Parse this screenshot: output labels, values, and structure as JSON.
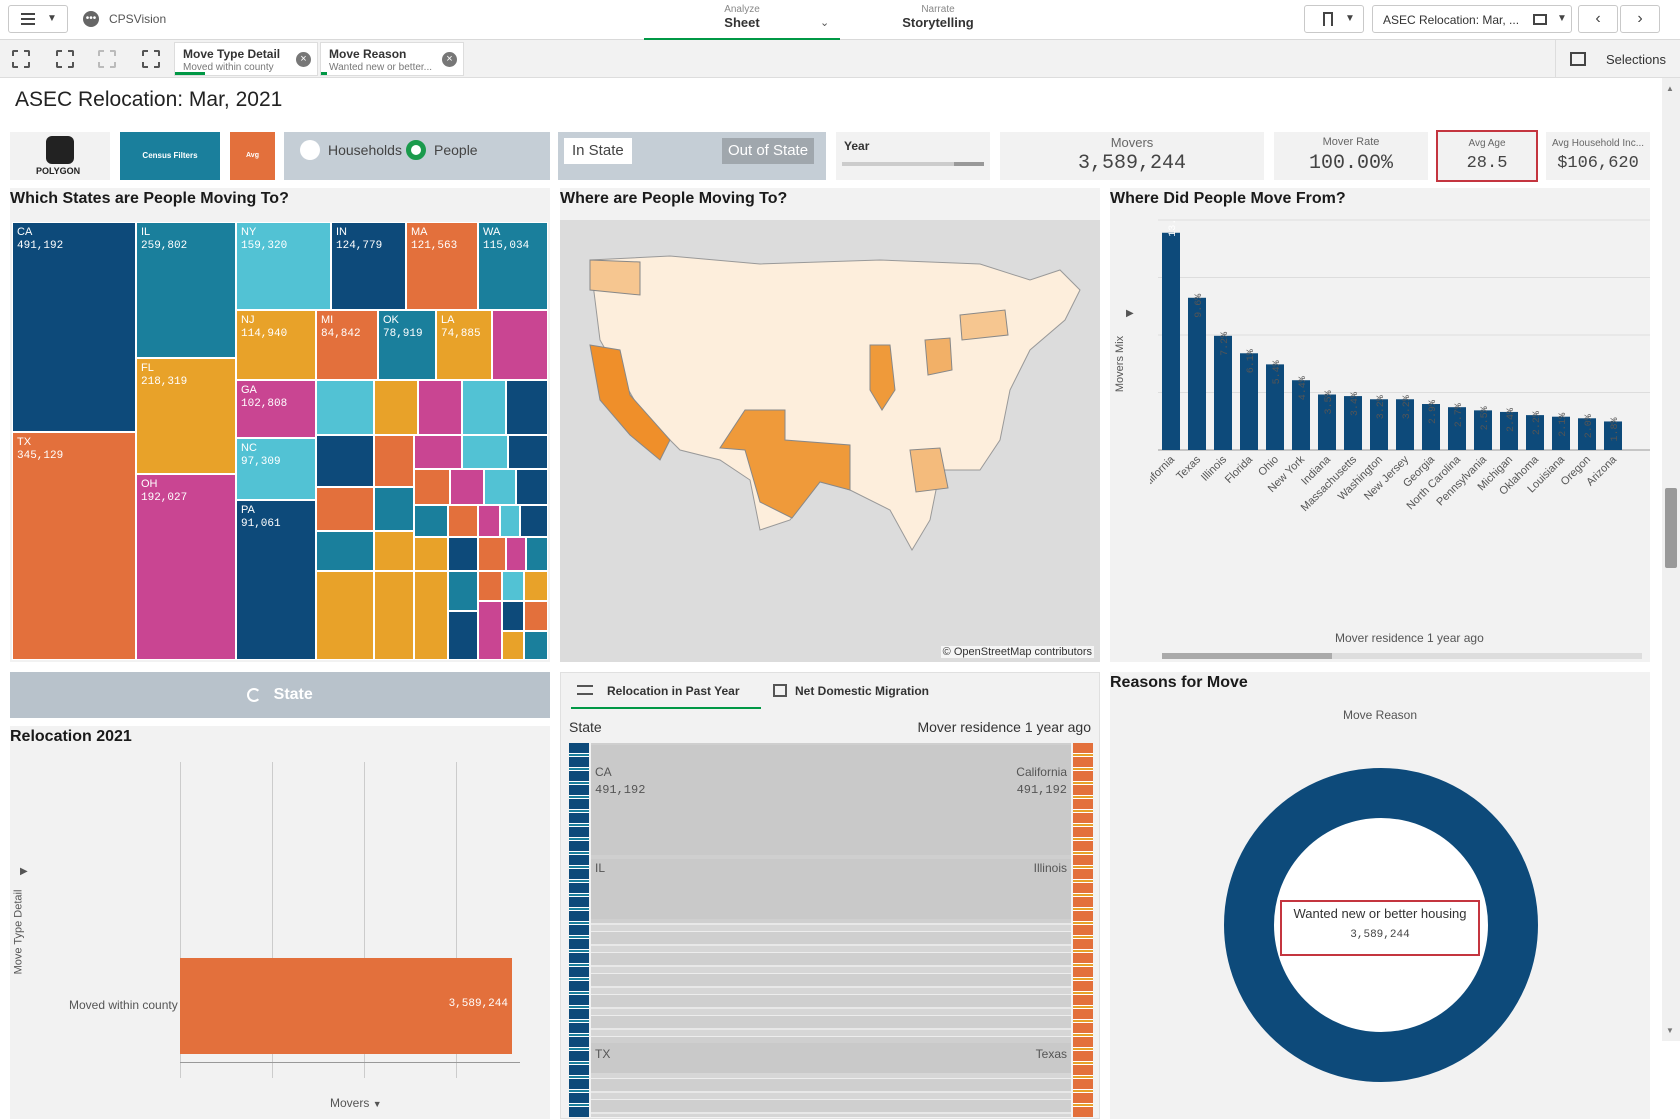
{
  "app": {
    "name": "CPSVision"
  },
  "nav": {
    "analyze_label": "Analyze",
    "analyze_value": "Sheet",
    "narrate_label": "Narrate",
    "narrate_value": "Storytelling",
    "sheet_selector": "ASEC Relocation: Mar, ..."
  },
  "selections": {
    "label": "Selections",
    "chips": [
      {
        "title": "Move Type Detail",
        "value": "Moved within county"
      },
      {
        "title": "Move Reason",
        "value": "Wanted new or better..."
      }
    ]
  },
  "sheet": {
    "title": "ASEC Relocation: Mar, 2021"
  },
  "filters": {
    "logo_text": "POLYGON",
    "census_filters": "Census Filters",
    "avg": "Avg",
    "households": "Households",
    "people": "People",
    "in_state": "In State",
    "out_of_state": "Out of State",
    "year": "Year"
  },
  "kpis": {
    "movers": {
      "label": "Movers",
      "value": "3,589,244"
    },
    "mover_rate": {
      "label": "Mover Rate",
      "value": "100.00%"
    },
    "avg_age": {
      "label": "Avg Age",
      "value": "28.5"
    },
    "avg_income": {
      "label": "Avg Household Inc...",
      "value": "$106,620"
    }
  },
  "treemap": {
    "title": "Which States are People Moving To?",
    "tiles": [
      {
        "code": "CA",
        "value": "491,192"
      },
      {
        "code": "TX",
        "value": "345,129"
      },
      {
        "code": "IL",
        "value": "259,802"
      },
      {
        "code": "FL",
        "value": "218,319"
      },
      {
        "code": "OH",
        "value": "192,027"
      },
      {
        "code": "NY",
        "value": "159,320"
      },
      {
        "code": "IN",
        "value": "124,779"
      },
      {
        "code": "MA",
        "value": "121,563"
      },
      {
        "code": "WA",
        "value": "115,034"
      },
      {
        "code": "NJ",
        "value": "114,940"
      },
      {
        "code": "MI",
        "value": "84,842"
      },
      {
        "code": "OK",
        "value": "78,919"
      },
      {
        "code": "LA",
        "value": "74,885"
      },
      {
        "code": "GA",
        "value": "102,808"
      },
      {
        "code": "NC",
        "value": "97,309"
      },
      {
        "code": "PA",
        "value": "91,061"
      }
    ]
  },
  "map": {
    "title": "Where are People Moving To?",
    "attribution": "© OpenStreetMap contributors"
  },
  "bar_chart": {
    "title": "Where Did People Move From?",
    "ylabel": "Movers Mix",
    "xlabel": "Mover residence 1 year ago"
  },
  "chart_data": {
    "type": "bar",
    "categories": [
      "California",
      "Texas",
      "Illinois",
      "Florida",
      "Ohio",
      "New York",
      "Indiana",
      "Massachusetts",
      "Washington",
      "New Jersey",
      "Georgia",
      "North Carolina",
      "Pennsylvania",
      "Michigan",
      "Oklahoma",
      "Louisiana",
      "Oregon",
      "Arizona"
    ],
    "values": [
      13.7,
      9.6,
      7.2,
      6.1,
      5.4,
      4.4,
      3.5,
      3.4,
      3.2,
      3.2,
      2.9,
      2.7,
      2.5,
      2.4,
      2.2,
      2.1,
      2.0,
      1.8
    ],
    "labels": [
      "13.7%",
      "9.6%",
      "7.2%",
      "6.1%",
      "5.4%",
      "4.4%",
      "3.5%",
      "3.4%",
      "3.2%",
      "3.2%",
      "2.9%",
      "2.7%",
      "2.5%",
      "2.4%",
      "2.2%",
      "2.1%",
      "2.0%",
      "1.8%"
    ],
    "xlabel": "Mover residence 1 year ago",
    "ylabel": "Movers Mix",
    "ylim": [
      0,
      14
    ],
    "grid": true
  },
  "state_button": {
    "label": "State"
  },
  "relocation": {
    "title": "Relocation 2021",
    "ylabel": "Move Type Detail",
    "xlabel": "Movers",
    "category": "Moved within county",
    "value": "3,589,244"
  },
  "tabs": {
    "tab1": "Relocation in Past Year",
    "tab2": "Net Domestic Migration"
  },
  "sankey": {
    "left_header": "State",
    "right_header": "Mover residence 1 year ago",
    "rows": [
      {
        "left": "CA",
        "left_value": "491,192",
        "right": "California",
        "right_value": "491,192"
      },
      {
        "left": "IL",
        "right": "Illinois"
      },
      {
        "left": "TX",
        "right": "Texas"
      }
    ]
  },
  "donut": {
    "title": "Reasons for Move",
    "subtitle": "Move Reason",
    "center_label": "Wanted new or better housing",
    "center_value": "3,589,244",
    "color": "#0d4a7a"
  }
}
